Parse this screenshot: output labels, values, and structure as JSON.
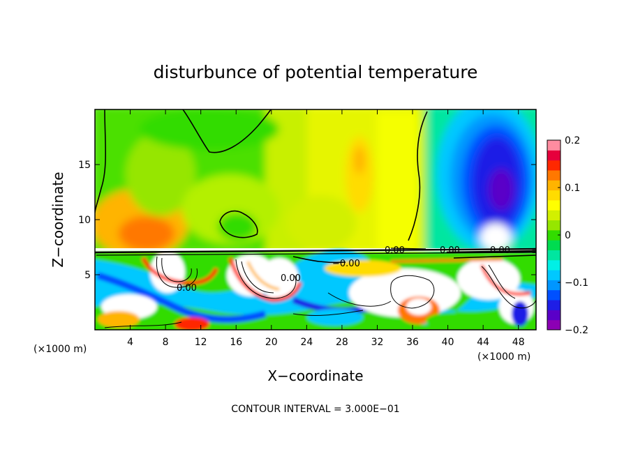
{
  "chart_data": {
    "type": "heatmap",
    "title": "disturbunce of potential temperature",
    "xlabel": "X−coordinate",
    "ylabel": "Z−coordinate",
    "x_unit": "(×1000 m)",
    "xlim": [
      0,
      50
    ],
    "ylim": [
      0,
      20
    ],
    "x_ticks": [
      4,
      8,
      12,
      16,
      20,
      24,
      28,
      32,
      36,
      40,
      44,
      48
    ],
    "y_ticks": [
      5,
      10,
      15
    ],
    "colorbar": {
      "range": [
        -0.2,
        0.2
      ],
      "tick_values": [
        0.2,
        0.1,
        0,
        -0.1,
        -0.2
      ],
      "tick_labels": [
        "0.2",
        "0.1",
        "0",
        "−0.1",
        "−0.2"
      ],
      "colors": [
        "#8c00b4",
        "#5a00c8",
        "#1e1ee6",
        "#0050ff",
        "#0096ff",
        "#00c8ff",
        "#00f0e6",
        "#00e6a0",
        "#00dc50",
        "#32dc00",
        "#96e600",
        "#d2f000",
        "#ffff00",
        "#ffdc00",
        "#ffb400",
        "#ff7800",
        "#ff2800",
        "#e6003c",
        "#ff8ca0"
      ]
    },
    "contour_labels": [
      "0.00",
      "0.00",
      "−0.00",
      "0.00",
      "0.00",
      "0.00"
    ],
    "contour_interval_text": "CONTOUR INTERVAL = 3.000E−01"
  }
}
